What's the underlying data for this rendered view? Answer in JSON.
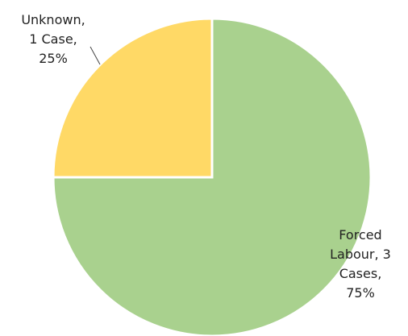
{
  "chart_data": {
    "type": "pie",
    "title": "",
    "slices": [
      {
        "category": "Forced Labour",
        "cases": 3,
        "percent": 75,
        "color": "#a9d18e",
        "label_lines": [
          "Forced",
          "Labour, 3",
          "Cases,",
          "75%"
        ]
      },
      {
        "category": "Unknown",
        "cases": 1,
        "percent": 25,
        "color": "#ffd966",
        "label_lines": [
          "Unknown,",
          "1 Case,",
          "25%"
        ]
      }
    ],
    "legend": "none"
  }
}
